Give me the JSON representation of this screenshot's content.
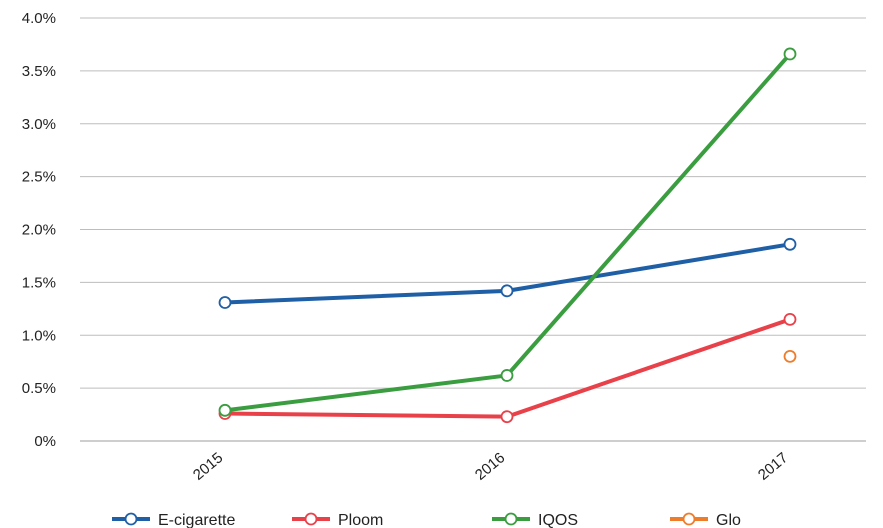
{
  "chart_data": {
    "type": "line",
    "title": "",
    "xlabel": "",
    "ylabel": "",
    "categories": [
      "2015",
      "2016",
      "2017"
    ],
    "ylim": [
      0,
      4.0
    ],
    "yticks": [
      "0%",
      "0.5%",
      "1.0%",
      "1.5%",
      "2.0%",
      "2.5%",
      "3.0%",
      "3.5%",
      "4.0%"
    ],
    "grid": true,
    "legend_position": "bottom",
    "series": [
      {
        "name": "E-cigarette",
        "color": "#1f5fa6",
        "values": [
          1.31,
          1.42,
          1.86
        ]
      },
      {
        "name": "Ploom",
        "color": "#e8414a",
        "values": [
          0.26,
          0.23,
          1.15
        ]
      },
      {
        "name": "IQOS",
        "color": "#3a9d3f",
        "values": [
          0.29,
          0.62,
          3.66
        ]
      },
      {
        "name": "Glo",
        "color": "#ee7d2b",
        "values": [
          null,
          null,
          0.8
        ]
      }
    ]
  }
}
